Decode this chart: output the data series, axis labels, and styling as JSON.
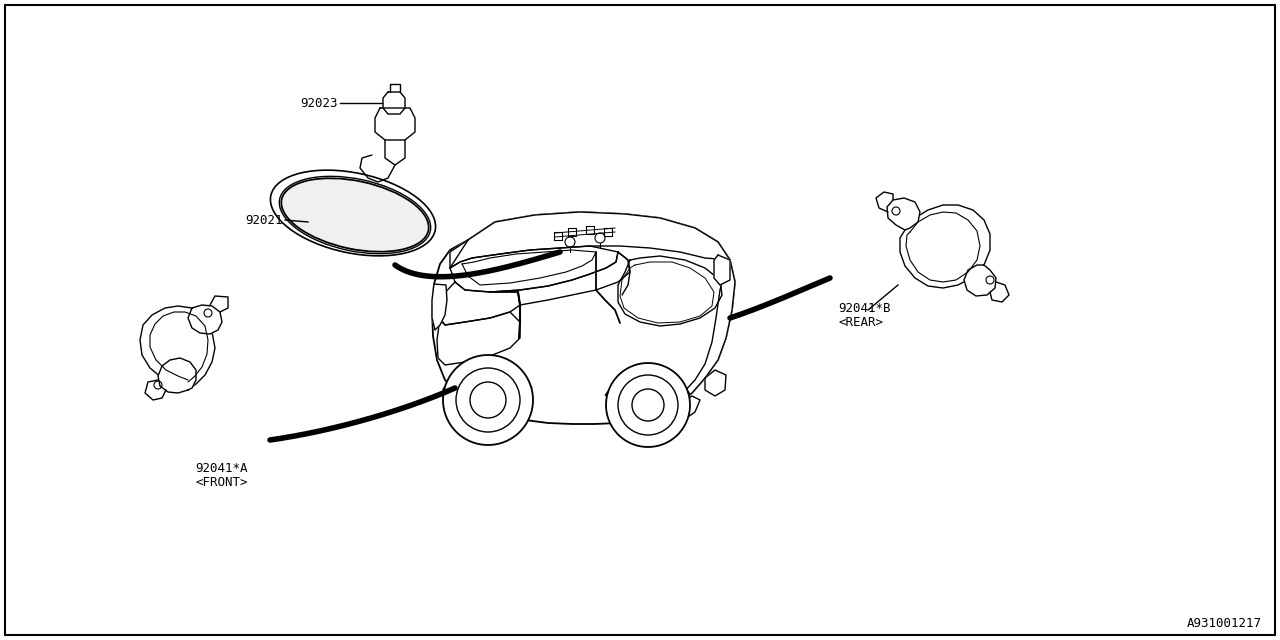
{
  "bg_color": "#ffffff",
  "line_color": "#000000",
  "border_color": "#000000",
  "diagram_id": "A931001217",
  "label_92023": "92023",
  "label_92021": "92021",
  "label_92041B_1": "92041*B",
  "label_92041B_2": "<REAR>",
  "label_92041A_1": "92041*A",
  "label_92041A_2": "<FRONT>",
  "lw": 1.0,
  "lw_thick": 4.0,
  "fontsize": 9
}
